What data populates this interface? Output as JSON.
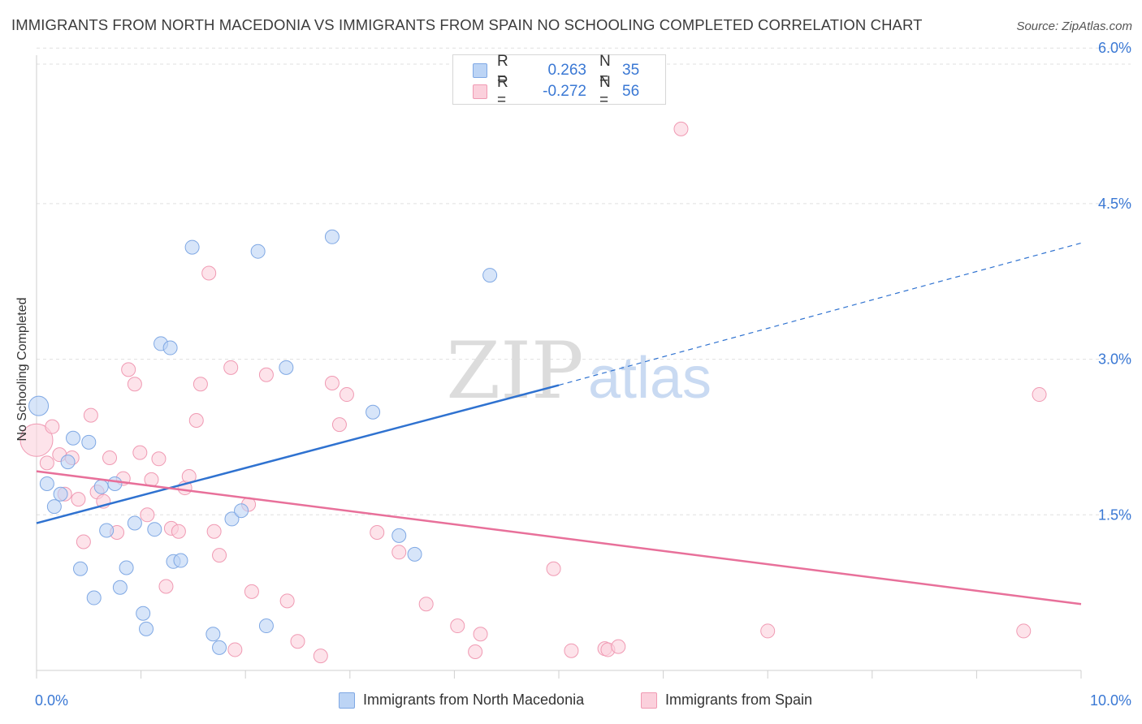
{
  "title": "IMMIGRANTS FROM NORTH MACEDONIA VS IMMIGRANTS FROM SPAIN NO SCHOOLING COMPLETED CORRELATION CHART",
  "source": "Source: ZipAtlas.com",
  "watermark": {
    "zip": "ZIP",
    "atlas": "atlas"
  },
  "legend_top": {
    "rows": [
      {
        "r_label": "R =",
        "r_value": "0.263",
        "n_label": "N =",
        "n_value": "35"
      },
      {
        "r_label": "R =",
        "r_value": "-0.272",
        "n_label": "N =",
        "n_value": "56"
      }
    ]
  },
  "legend_bottom": {
    "items": [
      "Immigrants from North Macedonia",
      "Immigrants from Spain"
    ]
  },
  "colors": {
    "blue_fill": "#bcd4f5",
    "blue_stroke": "#7fa8e4",
    "blue_line": "#2f72d0",
    "pink_fill": "#fbd0dc",
    "pink_stroke": "#f09ab3",
    "pink_line": "#e8709a",
    "tick_label": "#3a78d4",
    "grid": "#e0e0e0"
  },
  "chart_data": {
    "type": "scatter",
    "title": "IMMIGRANTS FROM NORTH MACEDONIA VS IMMIGRANTS FROM SPAIN NO SCHOOLING COMPLETED CORRELATION CHART",
    "xlabel": "",
    "ylabel": "No Schooling Completed",
    "xlim": [
      0,
      10
    ],
    "ylim": [
      0,
      6.2
    ],
    "x_tick_labels": [
      "0.0%",
      "10.0%"
    ],
    "y_ticks": [
      1.5,
      3.0,
      4.5,
      6.0
    ],
    "y_tick_labels": [
      "1.5%",
      "3.0%",
      "4.5%",
      "6.0%"
    ],
    "grid": true,
    "series": [
      {
        "name": "Immigrants from North Macedonia",
        "r": 0.263,
        "n": 35,
        "trend": {
          "x0": 0,
          "y0": 1.42,
          "x1": 5.0,
          "y1": 2.75,
          "dash_x1": 10.0,
          "dash_y1": 4.12
        },
        "points": [
          {
            "x": 0.02,
            "y": 2.55,
            "big": true
          },
          {
            "x": 0.1,
            "y": 1.8
          },
          {
            "x": 0.17,
            "y": 1.58
          },
          {
            "x": 0.23,
            "y": 1.7
          },
          {
            "x": 0.3,
            "y": 2.01
          },
          {
            "x": 0.35,
            "y": 2.24
          },
          {
            "x": 0.42,
            "y": 0.98
          },
          {
            "x": 0.5,
            "y": 2.2
          },
          {
            "x": 0.55,
            "y": 0.7
          },
          {
            "x": 0.62,
            "y": 1.77
          },
          {
            "x": 0.67,
            "y": 1.35
          },
          {
            "x": 0.75,
            "y": 1.8
          },
          {
            "x": 0.8,
            "y": 0.8
          },
          {
            "x": 0.86,
            "y": 0.99
          },
          {
            "x": 0.94,
            "y": 1.42
          },
          {
            "x": 1.02,
            "y": 0.55
          },
          {
            "x": 1.05,
            "y": 0.4
          },
          {
            "x": 1.13,
            "y": 1.36
          },
          {
            "x": 1.19,
            "y": 3.15
          },
          {
            "x": 1.28,
            "y": 3.11
          },
          {
            "x": 1.31,
            "y": 1.05
          },
          {
            "x": 1.38,
            "y": 1.06
          },
          {
            "x": 1.49,
            "y": 4.08
          },
          {
            "x": 1.69,
            "y": 0.35
          },
          {
            "x": 1.75,
            "y": 0.22
          },
          {
            "x": 1.87,
            "y": 1.46
          },
          {
            "x": 1.96,
            "y": 1.54
          },
          {
            "x": 2.12,
            "y": 4.04
          },
          {
            "x": 2.2,
            "y": 0.43
          },
          {
            "x": 2.39,
            "y": 2.92
          },
          {
            "x": 2.83,
            "y": 4.18
          },
          {
            "x": 3.22,
            "y": 2.49
          },
          {
            "x": 3.47,
            "y": 1.3
          },
          {
            "x": 3.62,
            "y": 1.12
          },
          {
            "x": 4.34,
            "y": 3.81
          }
        ]
      },
      {
        "name": "Immigrants from Spain",
        "r": -0.272,
        "n": 56,
        "trend": {
          "x0": 0,
          "y0": 1.92,
          "x1": 10.0,
          "y1": 0.64
        },
        "points": [
          {
            "x": 0.0,
            "y": 2.22,
            "big": true
          },
          {
            "x": 0.1,
            "y": 2.0
          },
          {
            "x": 0.15,
            "y": 2.35
          },
          {
            "x": 0.22,
            "y": 2.08
          },
          {
            "x": 0.27,
            "y": 1.7
          },
          {
            "x": 0.34,
            "y": 2.05
          },
          {
            "x": 0.4,
            "y": 1.65
          },
          {
            "x": 0.45,
            "y": 1.24
          },
          {
            "x": 0.52,
            "y": 2.46
          },
          {
            "x": 0.58,
            "y": 1.72
          },
          {
            "x": 0.64,
            "y": 1.63
          },
          {
            "x": 0.7,
            "y": 2.05
          },
          {
            "x": 0.77,
            "y": 1.33
          },
          {
            "x": 0.83,
            "y": 1.85
          },
          {
            "x": 0.88,
            "y": 2.9
          },
          {
            "x": 0.94,
            "y": 2.76
          },
          {
            "x": 0.99,
            "y": 2.1
          },
          {
            "x": 1.06,
            "y": 1.5
          },
          {
            "x": 1.1,
            "y": 1.84
          },
          {
            "x": 1.17,
            "y": 2.04
          },
          {
            "x": 1.24,
            "y": 0.81
          },
          {
            "x": 1.29,
            "y": 1.37
          },
          {
            "x": 1.36,
            "y": 1.34
          },
          {
            "x": 1.42,
            "y": 1.76
          },
          {
            "x": 1.46,
            "y": 1.87
          },
          {
            "x": 1.53,
            "y": 2.41
          },
          {
            "x": 1.57,
            "y": 2.76
          },
          {
            "x": 1.65,
            "y": 3.83
          },
          {
            "x": 1.7,
            "y": 1.34
          },
          {
            "x": 1.75,
            "y": 1.11
          },
          {
            "x": 1.86,
            "y": 2.92
          },
          {
            "x": 1.9,
            "y": 0.2
          },
          {
            "x": 2.03,
            "y": 1.6
          },
          {
            "x": 2.06,
            "y": 0.76
          },
          {
            "x": 2.2,
            "y": 2.85
          },
          {
            "x": 2.4,
            "y": 0.67
          },
          {
            "x": 2.5,
            "y": 0.28
          },
          {
            "x": 2.72,
            "y": 0.14
          },
          {
            "x": 2.83,
            "y": 2.77
          },
          {
            "x": 2.9,
            "y": 2.37
          },
          {
            "x": 2.97,
            "y": 2.66
          },
          {
            "x": 3.26,
            "y": 1.33
          },
          {
            "x": 3.47,
            "y": 1.14
          },
          {
            "x": 3.73,
            "y": 0.64
          },
          {
            "x": 4.03,
            "y": 0.43
          },
          {
            "x": 4.2,
            "y": 0.18
          },
          {
            "x": 4.25,
            "y": 0.35
          },
          {
            "x": 4.95,
            "y": 0.98
          },
          {
            "x": 5.12,
            "y": 0.19
          },
          {
            "x": 5.44,
            "y": 0.21
          },
          {
            "x": 5.47,
            "y": 0.2
          },
          {
            "x": 5.57,
            "y": 0.23
          },
          {
            "x": 6.17,
            "y": 5.22
          },
          {
            "x": 7.0,
            "y": 0.38
          },
          {
            "x": 9.45,
            "y": 0.38
          },
          {
            "x": 9.6,
            "y": 2.66
          }
        ]
      }
    ]
  }
}
